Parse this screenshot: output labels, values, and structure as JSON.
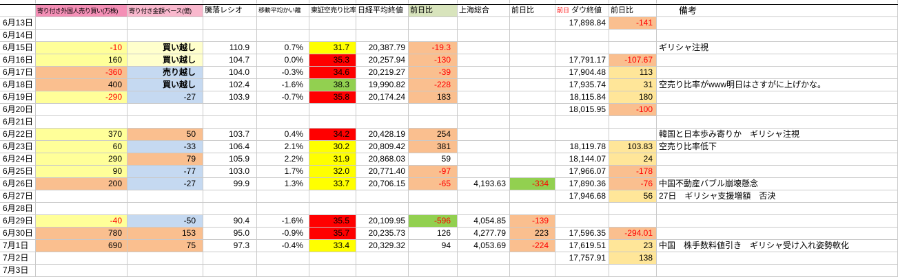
{
  "colors": {
    "negativeText": "#FF0000",
    "yellow": "#FFFF00",
    "red": "#FF0000",
    "green": "#92D050",
    "orange": "#FABF8F",
    "paleYellow": "#FFFF99",
    "gold": "#FFE699",
    "blue": "#C5D9F1",
    "cream": "#FFFFCC",
    "pinkStrong": "#F48FB6",
    "pinkLight": "#F9B8CD",
    "headerGreen": "#D8E4BC",
    "headerPrefixRed": "#FF0000"
  },
  "table": {
    "columns": [
      {
        "key": "date",
        "label": ""
      },
      {
        "key": "b",
        "label": "寄り付き外国人売り買い(万株)",
        "header_bg": "pinkStrong"
      },
      {
        "key": "c",
        "label": "寄り付き金額ベース(億)",
        "header_bg": "pinkLight"
      },
      {
        "key": "d",
        "label": "騰落レシオ"
      },
      {
        "key": "e",
        "label": "移動平均かい離"
      },
      {
        "key": "f",
        "label": "東証空売り比率"
      },
      {
        "key": "g",
        "label": "日経平均終値"
      },
      {
        "key": "h",
        "label": "前日比",
        "header_bg": "headerGreen"
      },
      {
        "key": "i",
        "label": "上海総合"
      },
      {
        "key": "j",
        "label": "前日比"
      },
      {
        "key": "k",
        "label": "ダウ終値",
        "prefix": "前日"
      },
      {
        "key": "l",
        "label": "前日比"
      },
      {
        "key": "m",
        "label": "備考"
      }
    ],
    "rows": [
      {
        "date": "6月13日",
        "cells": {
          "k": {
            "v": "17,898.84"
          },
          "l": {
            "v": "-141",
            "bg": "orange",
            "fg": "negativeText"
          }
        }
      },
      {
        "date": "6月14日",
        "cells": {}
      },
      {
        "date": "6月15日",
        "cells": {
          "b": {
            "v": "-10",
            "bg": "paleYellow",
            "fg": "negativeText"
          },
          "c": {
            "v": "買い越し",
            "bg": "cream",
            "bold": true
          },
          "d": {
            "v": "110.9"
          },
          "e": {
            "v": "0.7%"
          },
          "f": {
            "v": "31.7",
            "bg": "yellow"
          },
          "g": {
            "v": "20,387.79"
          },
          "h": {
            "v": "-19.3",
            "bg": "orange",
            "fg": "negativeText"
          },
          "m": {
            "v": "ギリシャ注視"
          }
        }
      },
      {
        "date": "6月16日",
        "cells": {
          "b": {
            "v": "160",
            "bg": "paleYellow"
          },
          "c": {
            "v": "買い越し",
            "bg": "cream",
            "bold": true
          },
          "d": {
            "v": "104.7"
          },
          "e": {
            "v": "0.0%"
          },
          "f": {
            "v": "35.3",
            "bg": "red"
          },
          "g": {
            "v": "20,257.94"
          },
          "h": {
            "v": "-130",
            "bg": "orange",
            "fg": "negativeText"
          },
          "k": {
            "v": "17,791.17"
          },
          "l": {
            "v": "-107.67",
            "bg": "orange",
            "fg": "negativeText"
          }
        }
      },
      {
        "date": "6月17日",
        "cells": {
          "b": {
            "v": "-360",
            "bg": "orange",
            "fg": "negativeText"
          },
          "c": {
            "v": "売り越し",
            "bg": "blue",
            "bold": true
          },
          "d": {
            "v": "104.0"
          },
          "e": {
            "v": "-0.3%"
          },
          "f": {
            "v": "34.6",
            "bg": "red"
          },
          "g": {
            "v": "20,219.27"
          },
          "h": {
            "v": "-39",
            "bg": "orange",
            "fg": "negativeText"
          },
          "k": {
            "v": "17,904.48"
          },
          "l": {
            "v": "113",
            "bg": "gold"
          }
        }
      },
      {
        "date": "6月18日",
        "cells": {
          "b": {
            "v": "400",
            "bg": "orange"
          },
          "c": {
            "v": "買い越し",
            "bg": "blue",
            "bold": true
          },
          "d": {
            "v": "102.4"
          },
          "e": {
            "v": "-1.6%"
          },
          "f": {
            "v": "38.3",
            "bg": "green"
          },
          "g": {
            "v": "19,990.82"
          },
          "h": {
            "v": "-228",
            "bg": "orange",
            "fg": "negativeText"
          },
          "k": {
            "v": "17,935.74"
          },
          "l": {
            "v": "31",
            "bg": "gold"
          },
          "m": {
            "v": "空売り比率がwww明日はさすがに上げかな。"
          }
        }
      },
      {
        "date": "6月19日",
        "cells": {
          "b": {
            "v": "-290",
            "bg": "paleYellow",
            "fg": "negativeText"
          },
          "c": {
            "v": "-27",
            "bg": "blue"
          },
          "d": {
            "v": "103.9"
          },
          "e": {
            "v": "-0.7%"
          },
          "f": {
            "v": "35.8",
            "bg": "red"
          },
          "g": {
            "v": "20,174.24"
          },
          "h": {
            "v": "183",
            "bg": "orange"
          },
          "k": {
            "v": "18,115.84"
          },
          "l": {
            "v": "180",
            "bg": "gold"
          }
        }
      },
      {
        "date": "6月20日",
        "cells": {
          "k": {
            "v": "18,015.95"
          },
          "l": {
            "v": "-100",
            "bg": "orange",
            "fg": "negativeText"
          }
        }
      },
      {
        "date": "6月21日",
        "cells": {}
      },
      {
        "date": "6月22日",
        "cells": {
          "b": {
            "v": "370",
            "bg": "paleYellow"
          },
          "c": {
            "v": "50",
            "bg": "orange"
          },
          "d": {
            "v": "103.7"
          },
          "e": {
            "v": "0.4%"
          },
          "f": {
            "v": "34.2",
            "bg": "red"
          },
          "g": {
            "v": "20,428.19"
          },
          "h": {
            "v": "254",
            "bg": "orange"
          },
          "m": {
            "v": "韓国と日本歩み寄りか　ギリシャ注視"
          }
        }
      },
      {
        "date": "6月23日",
        "cells": {
          "b": {
            "v": "60",
            "bg": "paleYellow"
          },
          "c": {
            "v": "-33",
            "bg": "blue"
          },
          "d": {
            "v": "106.4"
          },
          "e": {
            "v": "2.1%"
          },
          "f": {
            "v": "30.2",
            "bg": "yellow"
          },
          "g": {
            "v": "20,809.42"
          },
          "h": {
            "v": "381",
            "bg": "orange"
          },
          "k": {
            "v": "18,119.78"
          },
          "l": {
            "v": "103.83",
            "bg": "gold"
          },
          "m": {
            "v": "空売り比率低下"
          }
        }
      },
      {
        "date": "6月24日",
        "cells": {
          "b": {
            "v": "290",
            "bg": "paleYellow"
          },
          "c": {
            "v": "79",
            "bg": "orange"
          },
          "d": {
            "v": "105.9"
          },
          "e": {
            "v": "2.2%"
          },
          "f": {
            "v": "31.9",
            "bg": "yellow"
          },
          "g": {
            "v": "20,868.03"
          },
          "h": {
            "v": "59"
          },
          "k": {
            "v": "18,144.07"
          },
          "l": {
            "v": "24",
            "bg": "gold"
          }
        }
      },
      {
        "date": "6月25日",
        "cells": {
          "b": {
            "v": "90",
            "bg": "paleYellow"
          },
          "c": {
            "v": "-77",
            "bg": "blue"
          },
          "d": {
            "v": "103.0"
          },
          "e": {
            "v": "1.7%"
          },
          "f": {
            "v": "32.0",
            "bg": "yellow"
          },
          "g": {
            "v": "20,771.40"
          },
          "h": {
            "v": "-97",
            "bg": "orange",
            "fg": "negativeText"
          },
          "k": {
            "v": "17,966.07"
          },
          "l": {
            "v": "-178",
            "bg": "orange",
            "fg": "negativeText"
          }
        }
      },
      {
        "date": "6月26日",
        "cells": {
          "b": {
            "v": "200",
            "bg": "orange"
          },
          "c": {
            "v": "-27",
            "bg": "blue"
          },
          "d": {
            "v": "99.9"
          },
          "e": {
            "v": "1.3%"
          },
          "f": {
            "v": "33.7",
            "bg": "yellow"
          },
          "g": {
            "v": "20,706.15"
          },
          "h": {
            "v": "-65",
            "bg": "orange",
            "fg": "negativeText"
          },
          "i": {
            "v": "4,193.63"
          },
          "j": {
            "v": "-334",
            "bg": "green",
            "fg": "negativeText"
          },
          "k": {
            "v": "17,890.36"
          },
          "l": {
            "v": "-76",
            "bg": "orange",
            "fg": "negativeText"
          },
          "m": {
            "v": "中国不動産バブル崩壊懸念"
          }
        }
      },
      {
        "date": "6月27日",
        "cells": {
          "k": {
            "v": "17,946.68"
          },
          "l": {
            "v": "56",
            "bg": "gold"
          },
          "m": {
            "v": "27日　ギリシャ支援増額　否決"
          }
        }
      },
      {
        "date": "6月28日",
        "cells": {}
      },
      {
        "date": "6月29日",
        "cells": {
          "b": {
            "v": "-40",
            "bg": "paleYellow",
            "fg": "negativeText"
          },
          "c": {
            "v": "-50",
            "bg": "blue"
          },
          "d": {
            "v": "90.4"
          },
          "e": {
            "v": "-1.6%"
          },
          "f": {
            "v": "35.5",
            "bg": "red"
          },
          "g": {
            "v": "20,109.95"
          },
          "h": {
            "v": "-596",
            "bg": "green",
            "fg": "negativeText"
          },
          "i": {
            "v": "4,054.85"
          },
          "j": {
            "v": "-139",
            "bg": "orange",
            "fg": "negativeText"
          }
        }
      },
      {
        "date": "6月30日",
        "cells": {
          "b": {
            "v": "780",
            "bg": "orange"
          },
          "c": {
            "v": "153",
            "bg": "orange"
          },
          "d": {
            "v": "95.0"
          },
          "e": {
            "v": "-0.9%"
          },
          "f": {
            "v": "35.7",
            "bg": "red"
          },
          "g": {
            "v": "20,235.73"
          },
          "h": {
            "v": "126"
          },
          "i": {
            "v": "4,277.79"
          },
          "j": {
            "v": "223",
            "bg": "orange"
          },
          "k": {
            "v": "17,596.35"
          },
          "l": {
            "v": "-294.01",
            "bg": "orange",
            "fg": "negativeText"
          }
        }
      },
      {
        "date": "7月1日",
        "cells": {
          "b": {
            "v": "690",
            "bg": "orange"
          },
          "c": {
            "v": "75",
            "bg": "orange"
          },
          "d": {
            "v": "97.3"
          },
          "e": {
            "v": "-0.4%"
          },
          "f": {
            "v": "33.4",
            "bg": "yellow"
          },
          "g": {
            "v": "20,329.32"
          },
          "h": {
            "v": "94"
          },
          "i": {
            "v": "4,053.69"
          },
          "j": {
            "v": "-224",
            "bg": "orange",
            "fg": "negativeText"
          },
          "k": {
            "v": "17,619.51"
          },
          "l": {
            "v": "23",
            "bg": "gold"
          },
          "m": {
            "v": "中国　株手数料値引き　ギリシャ受け入れ姿勢軟化"
          }
        }
      },
      {
        "date": "7月2日",
        "cells": {
          "k": {
            "v": "17,757.91"
          },
          "l": {
            "v": "138",
            "bg": "gold"
          }
        }
      },
      {
        "date": "7月3日",
        "cells": {}
      }
    ]
  }
}
